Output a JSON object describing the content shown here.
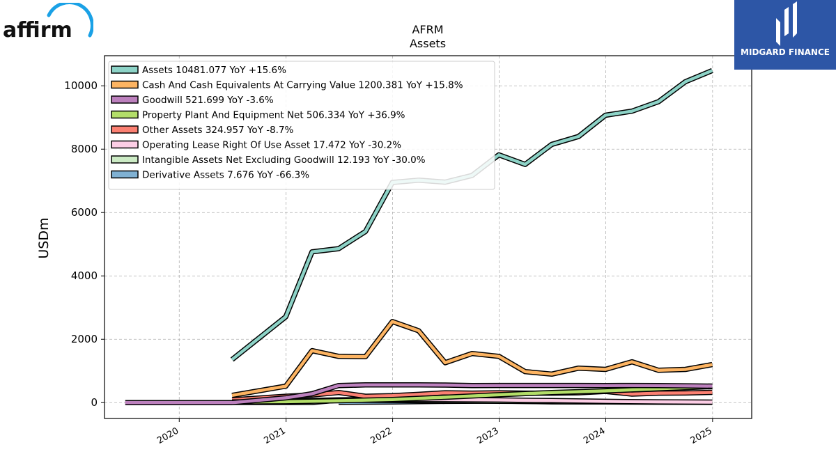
{
  "brand": {
    "left_logo_text": "affirm",
    "right_logo_text": "MIDGARD FINANCE",
    "colors": {
      "affirm_arc": "#1aa1e6",
      "midgard_bg": "#2d56a6"
    }
  },
  "chart_data": {
    "type": "line",
    "title": "AFRM",
    "subtitle": "Assets",
    "xlabel": "",
    "ylabel": "USDm",
    "xlim": [
      "2019-04-20",
      "2025-05-15"
    ],
    "ylim": [
      -500,
      10950
    ],
    "x_ticks": [
      "2020",
      "2021",
      "2022",
      "2023",
      "2024",
      "2025"
    ],
    "y_ticks": [
      0,
      2000,
      4000,
      6000,
      8000,
      10000
    ],
    "grid": true,
    "legend_position": "top-left",
    "series": [
      {
        "name": "Assets",
        "legend": "Assets  10481.077 YoY +15.6%",
        "color": "#8dd3c7",
        "x": [
          "2020-06-30",
          "2020-12-31",
          "2021-03-31",
          "2021-06-30",
          "2021-09-30",
          "2021-12-31",
          "2022-03-31",
          "2022-06-30",
          "2022-09-30",
          "2022-12-31",
          "2023-03-31",
          "2023-06-30",
          "2023-09-30",
          "2023-12-31",
          "2024-03-31",
          "2024-06-30",
          "2024-09-30",
          "2024-12-31"
        ],
        "y": [
          1360,
          2710,
          4760,
          4860,
          5400,
          6950,
          7020,
          6960,
          7170,
          7820,
          7520,
          8150,
          8400,
          9070,
          9200,
          9500,
          10130,
          10481
        ]
      },
      {
        "name": "Cash And Cash Equivalents At Carrying Value",
        "legend": "Cash And Cash Equivalents At Carrying Value  1200.381 YoY +15.8%",
        "color": "#fdb462",
        "x": [
          "2020-06-30",
          "2020-12-31",
          "2021-03-31",
          "2021-06-30",
          "2021-09-30",
          "2021-12-31",
          "2022-03-31",
          "2022-06-30",
          "2022-09-30",
          "2022-12-31",
          "2023-03-31",
          "2023-06-30",
          "2023-09-30",
          "2023-12-31",
          "2024-03-31",
          "2024-06-30",
          "2024-09-30",
          "2024-12-31"
        ],
        "y": [
          230,
          520,
          1640,
          1460,
          1450,
          2560,
          2270,
          1260,
          1550,
          1460,
          980,
          900,
          1090,
          1050,
          1290,
          1020,
          1050,
          1200
        ]
      },
      {
        "name": "Goodwill",
        "legend": "Goodwill  521.699 YoY -3.6%",
        "color": "#bc80bd",
        "x": [
          "2019-06-30",
          "2019-12-31",
          "2020-06-30",
          "2020-12-31",
          "2021-03-31",
          "2021-06-30",
          "2021-09-30",
          "2021-12-31",
          "2022-03-31",
          "2022-06-30",
          "2022-09-30",
          "2022-12-31",
          "2023-03-31",
          "2023-06-30",
          "2023-09-30",
          "2023-12-31",
          "2024-03-31",
          "2024-06-30",
          "2024-09-30",
          "2024-12-31"
        ],
        "y": [
          0,
          0,
          0,
          150,
          280,
          540,
          560,
          560,
          560,
          555,
          540,
          542,
          542,
          542,
          542,
          540,
          541,
          538,
          530,
          522
        ]
      },
      {
        "name": "Property Plant And Equipment Net",
        "legend": "Property Plant And Equipment Net  506.334 YoY +36.9%",
        "color": "#b3de69",
        "x": [
          "2020-06-30",
          "2020-12-31",
          "2021-06-30",
          "2021-12-31",
          "2022-06-30",
          "2022-12-31",
          "2023-06-30",
          "2023-12-31",
          "2024-06-30",
          "2024-12-31"
        ],
        "y": [
          20,
          30,
          60,
          100,
          170,
          250,
          320,
          370,
          440,
          506
        ]
      },
      {
        "name": "Other Assets",
        "legend": "Other Assets  324.957 YoY -8.7%",
        "color": "#fb8072",
        "x": [
          "2020-06-30",
          "2020-12-31",
          "2021-03-31",
          "2021-06-30",
          "2021-09-30",
          "2021-12-31",
          "2022-03-31",
          "2022-06-30",
          "2022-09-30",
          "2022-12-31",
          "2023-03-31",
          "2023-06-30",
          "2023-09-30",
          "2023-12-31",
          "2024-03-31",
          "2024-06-30",
          "2024-09-30",
          "2024-12-31"
        ],
        "y": [
          90,
          200,
          240,
          320,
          200,
          220,
          260,
          310,
          300,
          310,
          300,
          300,
          310,
          355,
          270,
          300,
          305,
          325
        ]
      },
      {
        "name": "Operating Lease Right Of Use Asset",
        "legend": "Operating Lease Right Of Use Asset  17.472 YoY -30.2%",
        "color": "#fccde5",
        "x": [
          "2020-06-30",
          "2020-12-31",
          "2021-06-30",
          "2021-12-31",
          "2022-06-30",
          "2022-12-31",
          "2023-06-30",
          "2023-12-31",
          "2024-06-30",
          "2024-12-31"
        ],
        "y": [
          40,
          50,
          90,
          100,
          95,
          85,
          65,
          40,
          25,
          17
        ]
      },
      {
        "name": "Intangible Assets Net Excluding Goodwill",
        "legend": "Intangible Assets Net Excluding Goodwill  12.193 YoY -30.0%",
        "color": "#ccebc5",
        "x": [
          "2020-06-30",
          "2020-12-31",
          "2021-03-31",
          "2021-06-30",
          "2021-12-31",
          "2022-06-30",
          "2022-12-31",
          "2023-06-30",
          "2023-12-31",
          "2024-06-30",
          "2024-12-31"
        ],
        "y": [
          5,
          5,
          5,
          80,
          70,
          60,
          45,
          35,
          25,
          18,
          12
        ]
      },
      {
        "name": "Derivative Assets",
        "legend": "Derivative Assets  7.676 YoY -66.3%",
        "color": "#80b1d3",
        "x": [
          "2021-06-30",
          "2021-12-31",
          "2022-06-30",
          "2022-12-31",
          "2023-06-30",
          "2023-12-31",
          "2024-06-30",
          "2024-12-31"
        ],
        "y": [
          10,
          20,
          40,
          50,
          25,
          20,
          15,
          8
        ]
      }
    ]
  }
}
